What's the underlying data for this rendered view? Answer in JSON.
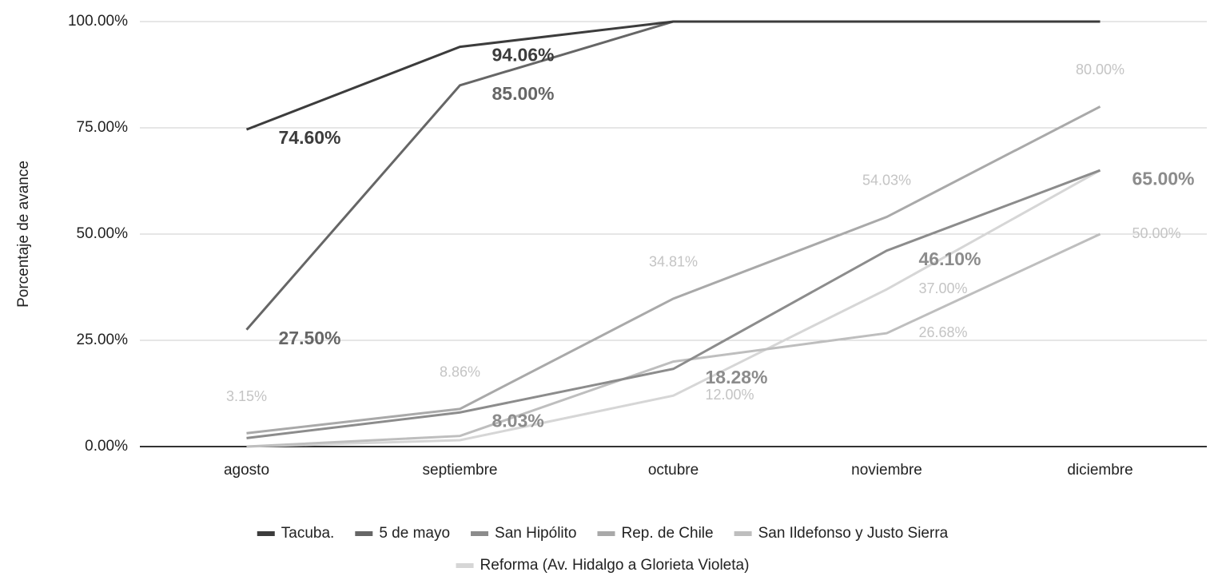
{
  "chart_data": {
    "type": "line",
    "y_label": "Porcentaje de avance",
    "categories": [
      "agosto",
      "septiembre",
      "octubre",
      "noviembre",
      "diciembre"
    ],
    "ylim": [
      0,
      100
    ],
    "yticks": [
      {
        "value": 0,
        "label": "0.00%"
      },
      {
        "value": 25,
        "label": "25.00%"
      },
      {
        "value": 50,
        "label": "50.00%"
      },
      {
        "value": 75,
        "label": "75.00%"
      },
      {
        "value": 100,
        "label": "100.00%"
      }
    ],
    "grid": true,
    "legend": "bottom",
    "series": [
      {
        "name": "Tacuba.",
        "color": "#3c3c3c",
        "bold": true,
        "values": [
          74.6,
          94.06,
          100,
          100,
          100
        ],
        "value_labels": [
          "74.60%",
          "94.06%",
          null,
          null,
          null
        ]
      },
      {
        "name": "5 de mayo",
        "color": "#666666",
        "bold": true,
        "values": [
          27.5,
          85,
          100,
          100,
          100
        ],
        "value_labels": [
          "27.50%",
          "85.00%",
          null,
          null,
          null
        ]
      },
      {
        "name": "San Hipólito",
        "color": "#8c8c8c",
        "bold": true,
        "values": [
          2,
          8.03,
          18.28,
          46.1,
          65
        ],
        "value_labels": [
          null,
          "8.03%",
          "18.28%",
          "46.10%",
          "65.00%"
        ]
      },
      {
        "name": "Rep. de Chile",
        "color": "#a9a9a9",
        "bold": false,
        "values": [
          3.15,
          8.86,
          34.81,
          54.03,
          80
        ],
        "value_labels": [
          "3.15%",
          "8.86%",
          "34.81%",
          "54.03%",
          "80.00%"
        ]
      },
      {
        "name": "San Ildefonso y Justo Sierra",
        "color": "#bebebe",
        "bold": false,
        "values": [
          0,
          2.5,
          20,
          26.68,
          50
        ],
        "value_labels": [
          null,
          null,
          null,
          "26.68%",
          "50.00%"
        ]
      },
      {
        "name": "Reforma (Av. Hidalgo a Glorieta Violeta)",
        "color": "#d6d6d6",
        "bold": false,
        "values": [
          0,
          1.5,
          12,
          37,
          65
        ],
        "value_labels": [
          null,
          null,
          "12.00%",
          "37.00%",
          null
        ]
      }
    ]
  }
}
